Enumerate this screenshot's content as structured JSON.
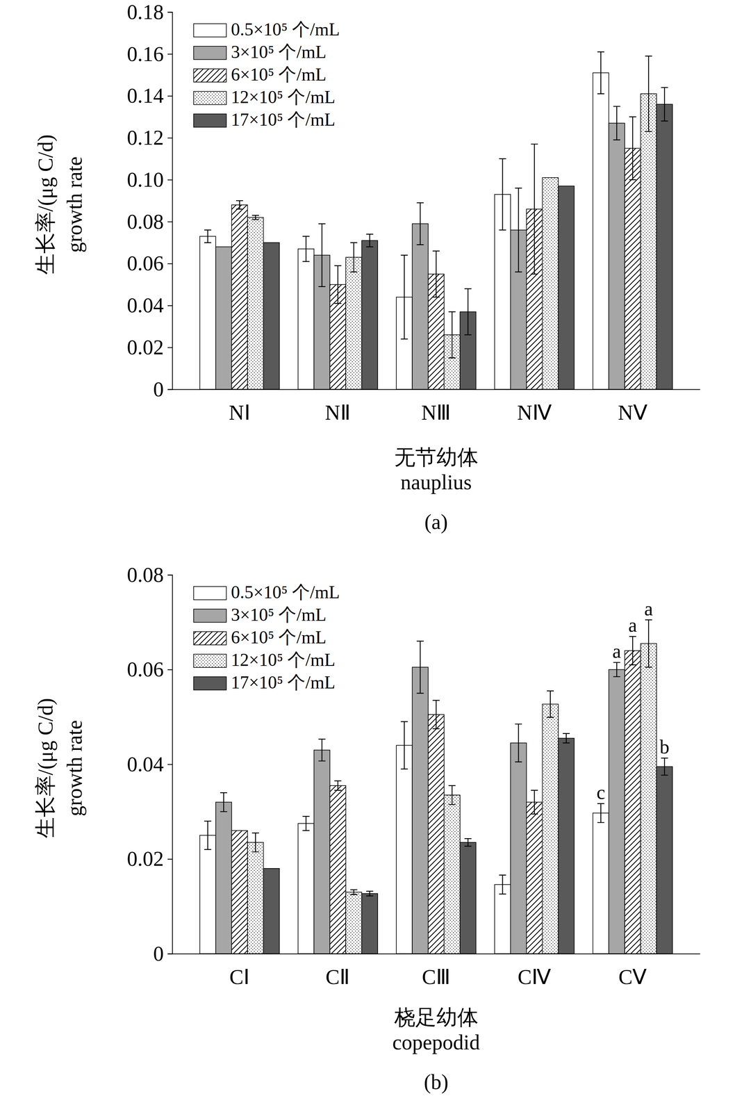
{
  "chart_data": [
    {
      "type": "bar",
      "panel_label": "(a)",
      "xlabel": [
        "无节幼体",
        "nauplius"
      ],
      "ylabel": [
        "生长率/(μg C/d)",
        "growth rate"
      ],
      "categories": [
        "NⅠ",
        "NⅡ",
        "NⅢ",
        "NⅣ",
        "NⅤ"
      ],
      "series": [
        {
          "name": "0.5×10⁵ 个/mL",
          "color": "#ffffff",
          "values": [
            0.073,
            0.067,
            0.044,
            0.093,
            0.151
          ],
          "errors": [
            0.003,
            0.006,
            0.02,
            0.017,
            0.01
          ]
        },
        {
          "name": "3×10⁵ 个/mL",
          "color": "#a6a6a6",
          "values": [
            0.068,
            0.064,
            0.079,
            0.076,
            0.127
          ],
          "errors": [
            null,
            0.015,
            0.01,
            0.02,
            0.008
          ]
        },
        {
          "name": "6×10⁵ 个/mL",
          "color": "#ffffff",
          "values": [
            0.088,
            0.05,
            0.055,
            0.086,
            0.115
          ],
          "errors": [
            0.002,
            0.009,
            0.011,
            0.031,
            0.015
          ]
        },
        {
          "name": "12×10⁵ 个/mL",
          "color": "#ffffff",
          "values": [
            0.082,
            0.063,
            0.026,
            0.101,
            0.141
          ],
          "errors": [
            0.001,
            0.007,
            0.011,
            null,
            0.018
          ]
        },
        {
          "name": "17×10⁵ 个/mL",
          "color": "#595959",
          "values": [
            0.07,
            0.071,
            0.037,
            0.097,
            0.136
          ],
          "errors": [
            null,
            0.003,
            0.011,
            null,
            0.008
          ]
        }
      ],
      "ylim": [
        0,
        0.18
      ],
      "yticks": [
        0,
        0.02,
        0.04,
        0.06,
        0.08,
        {
          "value": 0.1,
          "label": "0.10"
        },
        0.12,
        0.14,
        0.16,
        0.18
      ],
      "legend": "upper left"
    },
    {
      "type": "bar",
      "panel_label": "(b)",
      "xlabel": [
        "桡足幼体",
        "copepodid"
      ],
      "ylabel": [
        "生长率/(μg C/d)",
        "growth rate"
      ],
      "categories": [
        "CⅠ",
        "CⅡ",
        "CⅢ",
        "CⅣ",
        "CⅤ"
      ],
      "series": [
        {
          "name": "0.5×10⁵ 个/mL",
          "color": "#ffffff",
          "values": [
            0.025,
            0.0275,
            0.044,
            0.0146,
            0.0297
          ],
          "errors": [
            0.003,
            0.0015,
            0.005,
            0.002,
            0.002
          ],
          "letters": [
            null,
            null,
            null,
            null,
            "c"
          ]
        },
        {
          "name": "3×10⁵ 个/mL",
          "color": "#a6a6a6",
          "values": [
            0.032,
            0.043,
            0.0605,
            0.0445,
            0.06
          ],
          "errors": [
            0.002,
            0.0023,
            0.0055,
            0.004,
            0.0015
          ],
          "letters": [
            null,
            null,
            null,
            null,
            "a"
          ]
        },
        {
          "name": "6×10⁵ 个/mL",
          "color": "#ffffff",
          "values": [
            0.026,
            0.0355,
            0.0505,
            0.032,
            0.064
          ],
          "errors": [
            null,
            0.001,
            0.003,
            0.0025,
            0.003
          ],
          "letters": [
            null,
            null,
            null,
            null,
            "a"
          ]
        },
        {
          "name": "12×10⁵ 个/mL",
          "color": "#ffffff",
          "values": [
            0.0235,
            0.013,
            0.0335,
            0.0527,
            0.0655
          ],
          "errors": [
            0.002,
            0.0005,
            0.002,
            0.0028,
            0.005
          ],
          "letters": [
            null,
            null,
            null,
            null,
            "a"
          ]
        },
        {
          "name": "17×10⁵ 个/mL",
          "color": "#595959",
          "values": [
            0.018,
            0.0127,
            0.0235,
            0.0455,
            0.0395
          ],
          "errors": [
            null,
            0.0005,
            0.0008,
            0.001,
            0.0018
          ],
          "letters": [
            null,
            null,
            null,
            null,
            "b"
          ]
        }
      ],
      "ylim": [
        0,
        0.08
      ],
      "yticks": [
        0,
        0.02,
        0.04,
        0.06,
        0.08
      ],
      "legend": "upper left"
    }
  ]
}
